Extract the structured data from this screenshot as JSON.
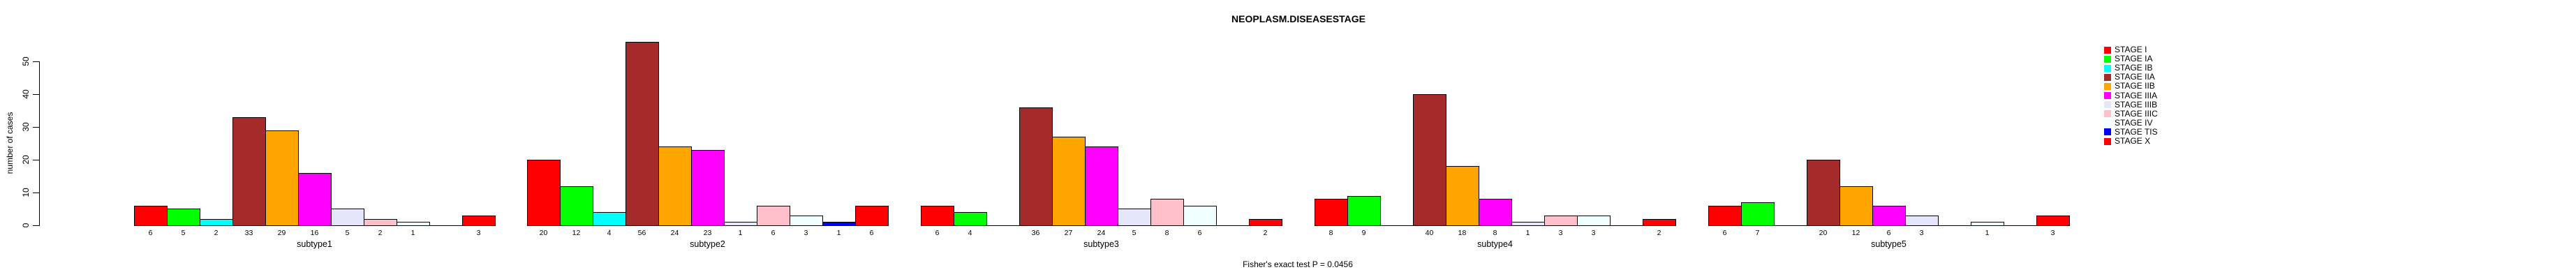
{
  "chart_data": {
    "type": "bar",
    "title": "NEOPLASM.DISEASESTAGE",
    "ylabel": "number of cases",
    "caption": "Fisher's exact test P = 0.0456",
    "ylim": [
      0,
      50
    ],
    "yticks": [
      0,
      10,
      20,
      30,
      40,
      50
    ],
    "grid": false,
    "legend_position": "top-right",
    "bar_value_labels_shown": true,
    "categories": [
      "subtype1",
      "subtype2",
      "subtype3",
      "subtype4",
      "subtype5"
    ],
    "series": [
      {
        "name": "STAGE I",
        "color": "#FF0000",
        "values": [
          6,
          20,
          6,
          8,
          6
        ]
      },
      {
        "name": "STAGE IA",
        "color": "#00FF00",
        "values": [
          5,
          12,
          4,
          9,
          7
        ]
      },
      {
        "name": "STAGE IB",
        "color": "#00FFFF",
        "values": [
          2,
          4,
          0,
          0,
          0
        ]
      },
      {
        "name": "STAGE IIA",
        "color": "#A52A2A",
        "values": [
          33,
          56,
          36,
          40,
          20
        ]
      },
      {
        "name": "STAGE IIB",
        "color": "#FFA500",
        "values": [
          29,
          24,
          27,
          18,
          12
        ]
      },
      {
        "name": "STAGE IIIA",
        "color": "#FF00FF",
        "values": [
          16,
          23,
          24,
          8,
          6
        ]
      },
      {
        "name": "STAGE IIIB",
        "color": "#E6E6FA",
        "values": [
          5,
          1,
          5,
          1,
          3
        ]
      },
      {
        "name": "STAGE IIIC",
        "color": "#FFC0CB",
        "values": [
          2,
          6,
          8,
          3,
          0
        ]
      },
      {
        "name": "STAGE IV",
        "color": "#F0FFFF",
        "values": [
          1,
          3,
          6,
          3,
          1
        ]
      },
      {
        "name": "STAGE TIS",
        "color": "#0000FF",
        "values": [
          0,
          1,
          0,
          0,
          0
        ]
      },
      {
        "name": "STAGE X",
        "color": "#FF0000",
        "values": [
          3,
          6,
          2,
          2,
          3
        ]
      }
    ]
  }
}
